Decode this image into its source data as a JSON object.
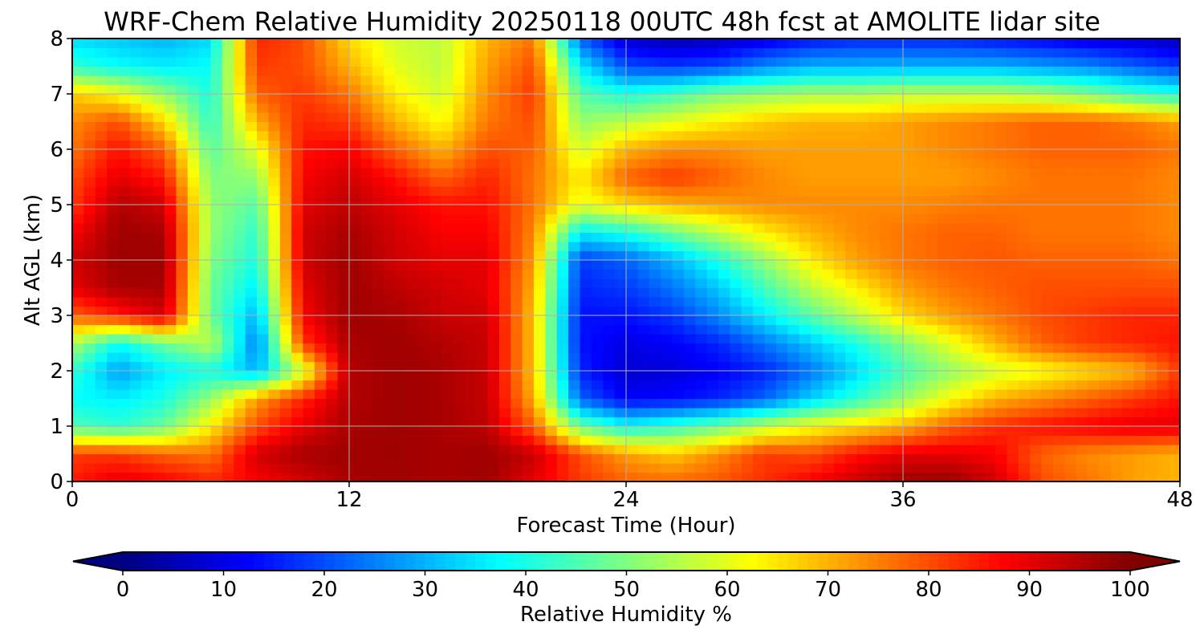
{
  "chart_data": {
    "type": "heatmap",
    "title": "WRF-Chem Relative Humidity 20250118 00UTC 48h fcst at AMOLITE lidar site",
    "xlabel": "Forecast Time (Hour)",
    "ylabel": "Alt AGL (km)",
    "xlim": [
      0,
      48
    ],
    "ylim": [
      0,
      8
    ],
    "xticks": [
      0,
      12,
      24,
      36,
      48
    ],
    "yticks": [
      0,
      1,
      2,
      3,
      4,
      5,
      6,
      7,
      8
    ],
    "grid": true,
    "colormap": "jet",
    "colorbar": {
      "label": "Relative Humidity %",
      "range": [
        0,
        100
      ],
      "ticks": [
        0,
        10,
        20,
        30,
        40,
        50,
        60,
        70,
        80,
        90,
        100
      ],
      "extend": "both",
      "orientation": "horizontal"
    },
    "x": [
      0,
      2,
      4,
      6,
      8,
      10,
      12,
      14,
      16,
      18,
      20,
      22,
      24,
      26,
      28,
      30,
      32,
      34,
      36,
      38,
      40,
      42,
      44,
      46,
      48
    ],
    "y": [
      0,
      0.5,
      1,
      1.5,
      2,
      2.5,
      3,
      3.5,
      4,
      4.5,
      5,
      5.5,
      6,
      6.5,
      7,
      7.5,
      8
    ],
    "z": [
      [
        85,
        90,
        88,
        84,
        88,
        92,
        96,
        97,
        96,
        97,
        90,
        82,
        78,
        77,
        79,
        83,
        88,
        93,
        97,
        98,
        92,
        80,
        76,
        72,
        70
      ],
      [
        82,
        82,
        78,
        76,
        92,
        96,
        97,
        97,
        96,
        97,
        93,
        80,
        72,
        68,
        74,
        82,
        80,
        86,
        90,
        90,
        88,
        78,
        74,
        72,
        70
      ],
      [
        45,
        42,
        48,
        64,
        80,
        90,
        96,
        97,
        96,
        94,
        78,
        48,
        38,
        42,
        48,
        56,
        62,
        66,
        70,
        78,
        83,
        86,
        88,
        90,
        90
      ],
      [
        38,
        36,
        40,
        52,
        72,
        84,
        95,
        97,
        96,
        93,
        70,
        22,
        12,
        13,
        16,
        22,
        33,
        42,
        52,
        62,
        70,
        74,
        78,
        82,
        86
      ],
      [
        42,
        28,
        36,
        40,
        30,
        58,
        95,
        97,
        96,
        93,
        68,
        16,
        8,
        9,
        12,
        16,
        24,
        34,
        44,
        52,
        58,
        62,
        66,
        70,
        82
      ],
      [
        55,
        38,
        48,
        56,
        24,
        82,
        96,
        97,
        95,
        93,
        68,
        14,
        10,
        12,
        16,
        24,
        32,
        40,
        50,
        60,
        70,
        78,
        82,
        84,
        86
      ],
      [
        78,
        85,
        92,
        48,
        30,
        88,
        97,
        96,
        93,
        92,
        68,
        14,
        14,
        18,
        26,
        36,
        46,
        56,
        66,
        72,
        76,
        80,
        82,
        84,
        84
      ],
      [
        90,
        96,
        96,
        48,
        36,
        90,
        97,
        94,
        92,
        90,
        70,
        16,
        18,
        24,
        32,
        44,
        56,
        64,
        72,
        76,
        78,
        80,
        80,
        80,
        80
      ],
      [
        92,
        97,
        97,
        50,
        40,
        92,
        97,
        92,
        90,
        90,
        72,
        18,
        22,
        30,
        40,
        52,
        64,
        72,
        76,
        78,
        79,
        78,
        78,
        78,
        76
      ],
      [
        88,
        97,
        96,
        52,
        42,
        92,
        96,
        92,
        88,
        88,
        74,
        36,
        40,
        48,
        56,
        64,
        70,
        74,
        76,
        78,
        78,
        76,
        76,
        76,
        74
      ],
      [
        82,
        95,
        92,
        52,
        46,
        90,
        94,
        90,
        86,
        86,
        76,
        60,
        66,
        70,
        72,
        74,
        74,
        74,
        74,
        75,
        76,
        76,
        76,
        76,
        74
      ],
      [
        80,
        90,
        85,
        50,
        52,
        88,
        92,
        86,
        78,
        84,
        76,
        64,
        78,
        82,
        78,
        74,
        72,
        72,
        72,
        72,
        74,
        76,
        76,
        76,
        74
      ],
      [
        76,
        86,
        78,
        46,
        60,
        86,
        88,
        78,
        70,
        80,
        78,
        58,
        70,
        74,
        74,
        72,
        72,
        72,
        72,
        74,
        76,
        78,
        78,
        78,
        76
      ],
      [
        74,
        80,
        66,
        42,
        70,
        84,
        82,
        70,
        62,
        76,
        80,
        52,
        56,
        60,
        64,
        68,
        70,
        70,
        72,
        74,
        76,
        78,
        78,
        76,
        72
      ],
      [
        68,
        62,
        52,
        40,
        78,
        82,
        76,
        64,
        58,
        74,
        82,
        46,
        40,
        44,
        50,
        52,
        54,
        54,
        56,
        56,
        56,
        54,
        50,
        44,
        40
      ],
      [
        42,
        38,
        36,
        38,
        82,
        80,
        70,
        60,
        56,
        72,
        80,
        36,
        20,
        18,
        20,
        26,
        30,
        30,
        30,
        30,
        30,
        28,
        26,
        22,
        18
      ],
      [
        34,
        32,
        30,
        34,
        84,
        80,
        66,
        58,
        56,
        70,
        76,
        22,
        8,
        5,
        6,
        10,
        14,
        16,
        16,
        16,
        14,
        12,
        10,
        8,
        6
      ]
    ]
  }
}
